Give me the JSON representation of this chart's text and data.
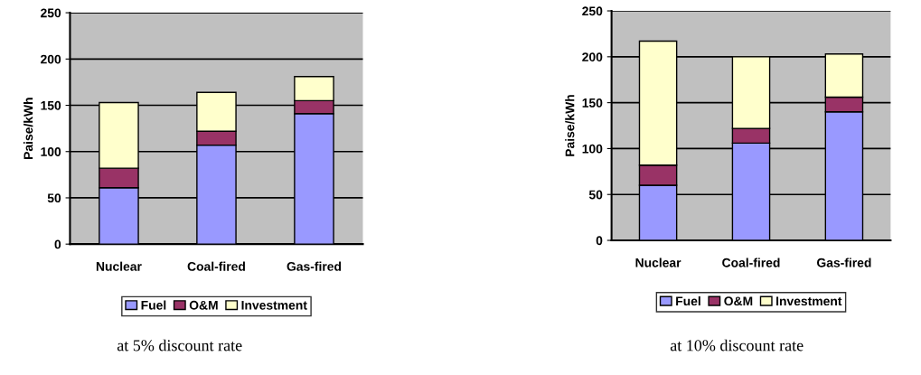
{
  "chart_data": [
    {
      "type": "bar",
      "stacked": true,
      "ylabel": "Paise/kWh",
      "categories": [
        "Nuclear",
        "Coal-fired",
        "Gas-fired"
      ],
      "ylim": [
        0,
        250
      ],
      "yticks": [
        0,
        50,
        100,
        150,
        200,
        250
      ],
      "grid": "y",
      "legend": "bottom",
      "annotations": [
        "at 5% discount rate"
      ],
      "series": [
        {
          "name": "Fuel",
          "color": "#9999ff",
          "values": [
            61,
            107,
            141
          ]
        },
        {
          "name": "O&M",
          "color": "#993366",
          "values": [
            21,
            15,
            14
          ]
        },
        {
          "name": "Investment",
          "color": "#ffffcc",
          "values": [
            71,
            42,
            26
          ]
        }
      ]
    },
    {
      "type": "bar",
      "stacked": true,
      "ylabel": "Paise/kWh",
      "categories": [
        "Nuclear",
        "Coal-fired",
        "Gas-fired"
      ],
      "ylim": [
        0,
        250
      ],
      "yticks": [
        0,
        50,
        100,
        150,
        200,
        250
      ],
      "grid": "y",
      "legend": "bottom",
      "annotations": [
        "at 10% discount rate"
      ],
      "series": [
        {
          "name": "Fuel",
          "color": "#9999ff",
          "values": [
            60,
            106,
            140
          ]
        },
        {
          "name": "O&M",
          "color": "#993366",
          "values": [
            22,
            16,
            16
          ]
        },
        {
          "name": "Investment",
          "color": "#ffffcc",
          "values": [
            135,
            78,
            47
          ]
        }
      ]
    }
  ]
}
